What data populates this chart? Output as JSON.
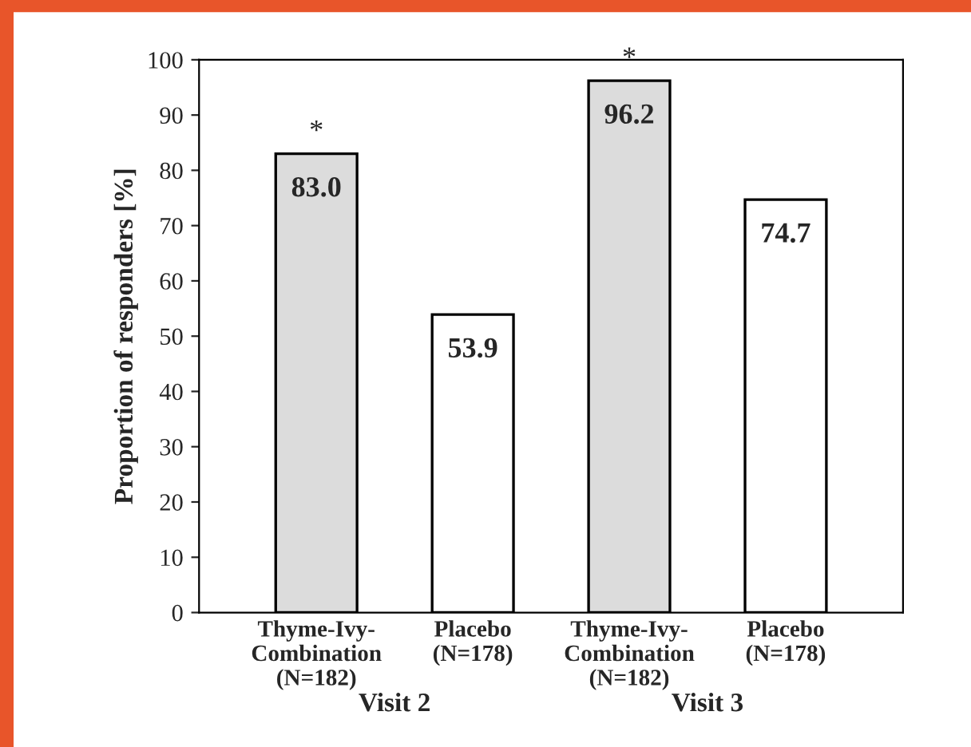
{
  "chart_data": {
    "type": "bar",
    "ylabel": "Proportion of responders [%]",
    "categories": [
      "Thyme-Ivy-\nCombination\n(N=182)",
      "Placebo\n(N=178)",
      "Thyme-Ivy-\nCombination\n(N=182)",
      "Placebo\n(N=178)"
    ],
    "values": [
      83.0,
      53.9,
      96.2,
      74.7
    ],
    "colors": [
      "#dcdcdc",
      "#ffffff",
      "#dcdcdc",
      "#ffffff"
    ],
    "value_labels": [
      "83.0",
      "53.9",
      "96.2",
      "74.7"
    ],
    "ylim": [
      0,
      100
    ],
    "yticks": [
      0,
      10,
      20,
      30,
      40,
      50,
      60,
      70,
      80,
      90,
      100
    ],
    "annotations": [
      "*",
      "*",
      "Visit 2",
      "Visit 3"
    ],
    "grid": false,
    "legend": false
  }
}
